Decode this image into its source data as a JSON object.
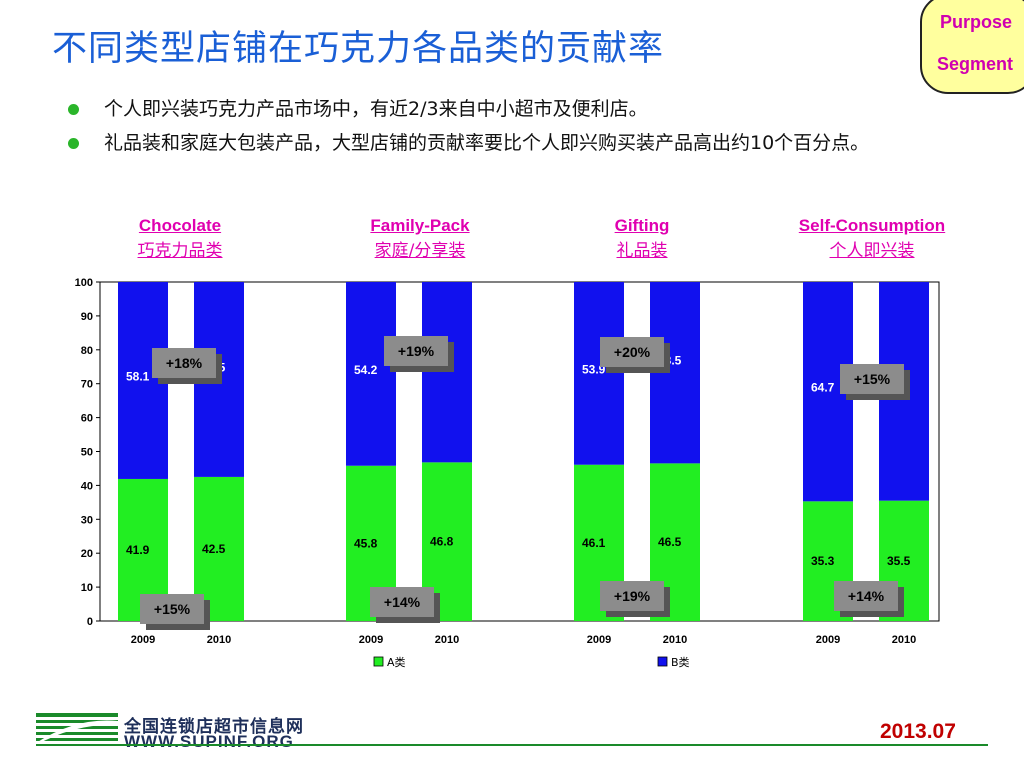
{
  "slide": {
    "title": "不同类型店铺在巧克力各品类的贡献率",
    "badge_line1": "Purpose",
    "badge_line2": "Segment",
    "bullets": [
      "个人即兴装巧克力产品市场中，有近2/3来自中小超市及便利店。",
      "礼品装和家庭大包装产品，大型店铺的贡献率要比个人即兴购买装产品高出约10个百分点。"
    ],
    "footer_cn": "全国连锁店超市信息网",
    "footer_url": "WWW.SUPINF.ORG",
    "date": "2013.07"
  },
  "colors": {
    "a": "#22ee22",
    "b": "#1111ee",
    "title": "#1a5fd6",
    "group_title": "#e000b0",
    "callout": "#8c8c8c"
  },
  "chart_data": {
    "type": "bar",
    "stacked": true,
    "ylim": [
      0,
      100
    ],
    "yticks": [
      0,
      10,
      20,
      30,
      40,
      50,
      60,
      70,
      80,
      90,
      100
    ],
    "groups": [
      {
        "title_en": "Chocolate",
        "title_cn": "巧克力品类",
        "categories": [
          "2009",
          "2010"
        ],
        "A": [
          41.9,
          42.5
        ],
        "B": [
          58.1,
          57.5
        ],
        "callout_top": "+18%",
        "callout_bottom": "+15%"
      },
      {
        "title_en": "Family-Pack",
        "title_cn": "家庭/分享装",
        "categories": [
          "2009",
          "2010"
        ],
        "A": [
          45.8,
          46.8
        ],
        "B": [
          54.2,
          53.2
        ],
        "callout_top": "+19%",
        "callout_bottom": "+14%"
      },
      {
        "title_en": "Gifting",
        "title_cn": "礼品装",
        "categories": [
          "2009",
          "2010"
        ],
        "A": [
          46.1,
          46.5
        ],
        "B": [
          53.9,
          53.5
        ],
        "callout_top": "+20%",
        "callout_bottom": "+19%"
      },
      {
        "title_en": "Self-Consumption",
        "title_cn": "个人即兴装",
        "categories": [
          "2009",
          "2010"
        ],
        "A": [
          35.3,
          35.5
        ],
        "B": [
          64.7,
          64.5
        ],
        "callout_top": "+15%",
        "callout_bottom": "+14%"
      }
    ],
    "series": [
      {
        "name": "A类",
        "key": "A"
      },
      {
        "name": "B类",
        "key": "B"
      }
    ],
    "legend": "bottom"
  }
}
